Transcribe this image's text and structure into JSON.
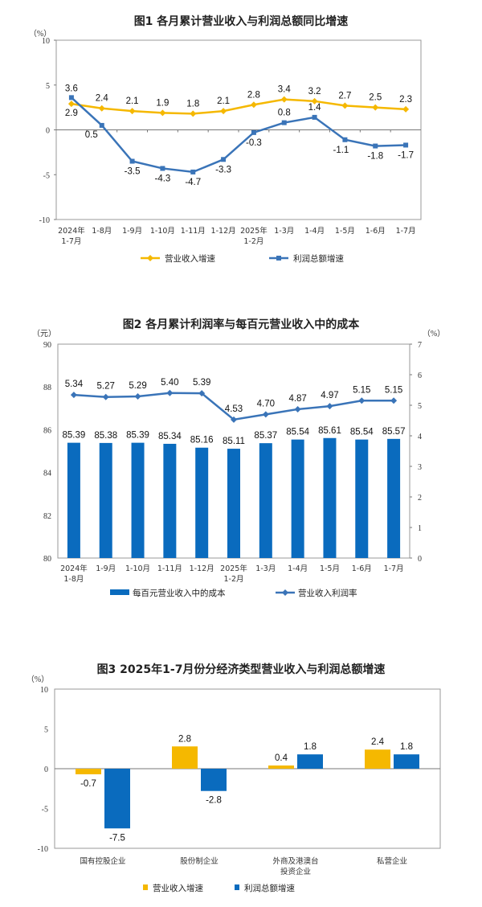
{
  "chart_data": [
    {
      "type": "line",
      "title": "图1  各月累计营业收入与利润总额同比增速",
      "yunit": "（%）",
      "ylim": [
        -10,
        10
      ],
      "yticks": [
        10,
        5,
        0,
        -5,
        -10
      ],
      "categories": [
        "2024年\n1-7月",
        "1-8月",
        "1-9月",
        "1-10月",
        "1-11月",
        "1-12月",
        "2025年\n1-2月",
        "1-3月",
        "1-4月",
        "1-5月",
        "1-6月",
        "1-7月"
      ],
      "series": [
        {
          "name": "营业收入增速",
          "color": "#F5B800",
          "marker": "diamond",
          "values": [
            2.9,
            2.4,
            2.1,
            1.9,
            1.8,
            2.1,
            2.8,
            3.4,
            3.2,
            2.7,
            2.5,
            2.3
          ]
        },
        {
          "name": "利润总额增速",
          "color": "#3A74B8",
          "marker": "square",
          "values": [
            3.6,
            0.5,
            -3.5,
            -4.3,
            -4.7,
            -3.3,
            -0.3,
            0.8,
            1.4,
            -1.1,
            -1.8,
            -1.7
          ]
        }
      ],
      "grid": false,
      "legend": "bottom"
    },
    {
      "type": "bar+line",
      "title": "图2  各月累计利润率与每百元营业收入中的成本",
      "yunit_left": "（元）",
      "yunit_right": "（%）",
      "ylim_left": [
        80,
        90
      ],
      "yticks_left": [
        90,
        88,
        86,
        84,
        82,
        80
      ],
      "ylim_right": [
        0,
        7
      ],
      "yticks_right": [
        7,
        6,
        5,
        4,
        3,
        2,
        1,
        0
      ],
      "categories": [
        "2024年\n1-8月",
        "1-9月",
        "1-10月",
        "1-11月",
        "1-12月",
        "2025年\n1-2月",
        "1-3月",
        "1-4月",
        "1-5月",
        "1-6月",
        "1-7月"
      ],
      "series": [
        {
          "name": "每百元营业收入中的成本",
          "type": "bar",
          "axis": "left",
          "color": "#0A6BBE",
          "values": [
            "85.39",
            "85.38",
            "85.39",
            "85.34",
            "85.16",
            "85.11",
            "85.37",
            "85.54",
            "85.61",
            "85.54",
            "85.57"
          ]
        },
        {
          "name": "营业收入利润率",
          "type": "line",
          "axis": "right",
          "color": "#3A74B8",
          "marker": "diamond",
          "values": [
            "5.34",
            "5.27",
            "5.29",
            "5.40",
            "5.39",
            "4.53",
            "4.70",
            "4.87",
            "4.97",
            "5.15",
            "5.15"
          ]
        }
      ],
      "grid": false,
      "legend": "bottom"
    },
    {
      "type": "bar",
      "title": "图3  2025年1-7月份分经济类型营业收入与利润总额增速",
      "yunit": "（%）",
      "ylim": [
        -10,
        10
      ],
      "yticks": [
        10,
        5,
        0,
        -5,
        -10
      ],
      "categories": [
        "国有控股企业",
        "股份制企业",
        "外商及港澳台\n投资企业",
        "私营企业"
      ],
      "series": [
        {
          "name": "营业收入增速",
          "color": "#F5B800",
          "values": [
            -0.7,
            2.8,
            0.4,
            2.4
          ]
        },
        {
          "name": "利润总额增速",
          "color": "#0A6BBE",
          "values": [
            -7.5,
            -2.8,
            1.8,
            1.8
          ]
        }
      ],
      "grid": false,
      "legend": "bottom"
    }
  ]
}
